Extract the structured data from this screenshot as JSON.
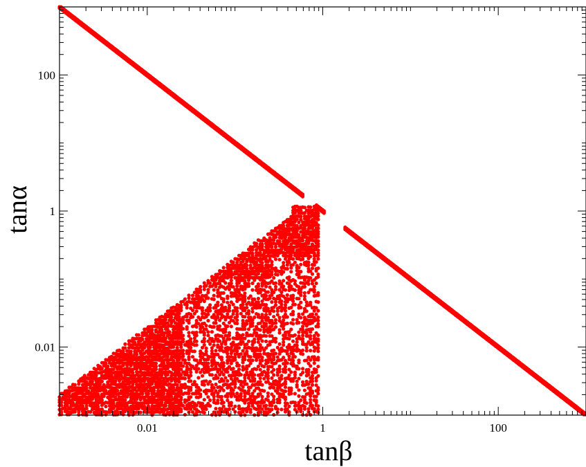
{
  "chart_data": {
    "type": "scatter",
    "title": "",
    "xlabel": "tanβ",
    "ylabel": "tanα",
    "xscale": "log",
    "yscale": "log",
    "xlim": [
      0.001,
      1000
    ],
    "ylim": [
      0.001,
      1000
    ],
    "grid": false,
    "legend": "none",
    "marker_color": "#ff0000",
    "x_ticks": [
      {
        "value": 0.01,
        "label": "0.01"
      },
      {
        "value": 1,
        "label": "1"
      },
      {
        "value": 100,
        "label": "100"
      }
    ],
    "y_ticks": [
      {
        "value": 0.01,
        "label": "0.01"
      },
      {
        "value": 1,
        "label": "1"
      },
      {
        "value": 100,
        "label": "100"
      }
    ],
    "series": [
      {
        "description": "upper branch",
        "relation": "tanα = 1/tanβ",
        "segments": [
          {
            "x_range": [
              0.001,
              0.6
            ]
          },
          {
            "x_range": [
              0.85,
              1.05
            ]
          },
          {
            "x_range": [
              1.8,
              1000
            ]
          }
        ]
      },
      {
        "description": "lower dense region",
        "x_range": [
          0.001,
          0.9
        ],
        "y_range": [
          0.001,
          1.2
        ],
        "upper_edge": "tanα ≈ 2·tanβ",
        "lower_edge": "tanα = 0.001"
      }
    ]
  }
}
